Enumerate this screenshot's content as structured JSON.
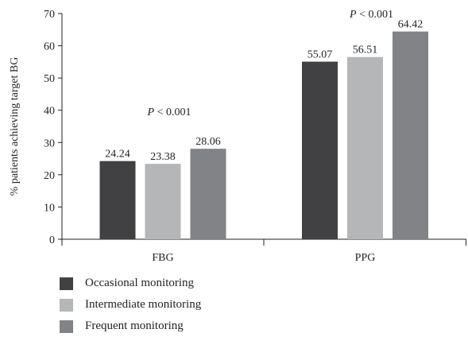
{
  "chart_data": {
    "type": "bar",
    "categories": [
      "FBG",
      "PPG"
    ],
    "series": [
      {
        "name": "Occasional monitoring",
        "values": [
          24.24,
          55.07
        ],
        "labels": [
          "24.24",
          "55.07"
        ],
        "color": "#414143"
      },
      {
        "name": "Intermediate monitoring",
        "values": [
          23.38,
          56.51
        ],
        "labels": [
          "23.38",
          "56.51"
        ],
        "color": "#b5b6b8"
      },
      {
        "name": "Frequent monitoring",
        "values": [
          28.06,
          64.42
        ],
        "labels": [
          "28.06",
          "64.42"
        ],
        "color": "#828386"
      }
    ],
    "ylabel": "% patients achieving target BG",
    "xlabel": "",
    "ylim": [
      0,
      70
    ],
    "yticks": [
      "0",
      "10",
      "20",
      "30",
      "40",
      "50",
      "60",
      "70"
    ],
    "grid": false,
    "legend_position": "bottom-left",
    "annotations": [
      {
        "category": "FBG",
        "p_symbol": "P",
        "text": " < 0.001"
      },
      {
        "category": "PPG",
        "p_symbol": "P",
        "text": " < 0.001"
      }
    ]
  }
}
